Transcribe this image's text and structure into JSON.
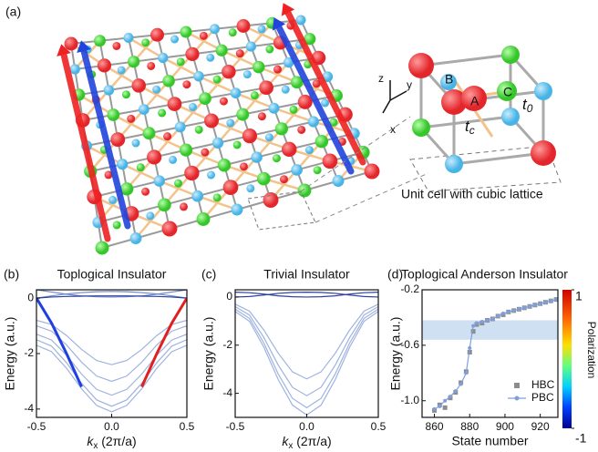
{
  "panel_a": {
    "label": "(a)",
    "caption": "Unit cell with cubic lattice",
    "sites": [
      "A",
      "B",
      "C"
    ],
    "hopping_0": {
      "base": "t",
      "sub": "0"
    },
    "hopping_c": {
      "base": "t",
      "sub": "c"
    },
    "axes": [
      "z",
      "y",
      "x"
    ]
  },
  "chart_data": [
    {
      "type": "line",
      "panel": "(b)",
      "title": "Toplogical Insulator",
      "ylabel": "Energy (a.u.)",
      "xlabel": {
        "base": "k",
        "sub": "x",
        "rest": " (2π/a)"
      },
      "x": [
        -0.5,
        -0.4,
        -0.3,
        -0.2,
        -0.1,
        0,
        0.1,
        0.2,
        0.3,
        0.4,
        0.5
      ],
      "xlim": [
        -0.5,
        0.5
      ],
      "ylim": [
        -4.3,
        0.3
      ],
      "xticks": [
        -0.5,
        {
          "value": 0,
          "label": "0.0"
        },
        0.5
      ],
      "yticks": [
        0,
        -2,
        -4
      ],
      "series": [
        {
          "color": "#9fb3e0",
          "values": [
            -1.7,
            -1.93,
            -2.53,
            -3.27,
            -3.87,
            -4.1,
            -3.87,
            -3.27,
            -2.53,
            -1.93,
            -1.7
          ]
        },
        {
          "color": "#9fb3e0",
          "values": [
            -1.5,
            -1.73,
            -2.33,
            -3.07,
            -3.67,
            -3.9,
            -3.67,
            -3.07,
            -2.33,
            -1.73,
            -1.5
          ]
        },
        {
          "color": "#9fb3e0",
          "values": [
            -1.3,
            -1.51,
            -2.06,
            -2.74,
            -3.29,
            -3.5,
            -3.29,
            -2.74,
            -2.06,
            -1.51,
            -1.3
          ]
        },
        {
          "color": "#9fb3e0",
          "values": [
            -1.0,
            -1.19,
            -1.69,
            -2.31,
            -2.81,
            -3.0,
            -2.81,
            -2.31,
            -1.69,
            -1.19,
            -1.0
          ]
        },
        {
          "color": "#9fb3e0",
          "values": [
            -0.8,
            -0.95,
            -1.35,
            -1.85,
            -2.25,
            -2.4,
            -2.25,
            -1.85,
            -1.35,
            -0.95,
            -0.8
          ]
        },
        {
          "color": "#6f86c8",
          "values": [
            0,
            0.08,
            0.15,
            0.2,
            0.23,
            0.24,
            0.23,
            0.2,
            0.15,
            0.08,
            0
          ]
        },
        {
          "color": "#6f86c8",
          "values": [
            0.3,
            0.22,
            0.14,
            0.08,
            0.05,
            0.04,
            0.05,
            0.08,
            0.14,
            0.22,
            0.3
          ]
        },
        {
          "color": "#2a3f9f",
          "values": [
            0,
            0.04,
            0.06,
            0.07,
            0.08,
            0.08,
            0.08,
            0.07,
            0.06,
            0.04,
            0
          ]
        },
        {
          "color": "#1f3fdf",
          "width": 3,
          "values": [
            0,
            -0.9,
            -2.0,
            -3.2,
            null,
            null,
            null,
            null,
            null,
            null,
            0.3
          ]
        },
        {
          "color": "#e02020",
          "width": 3,
          "values": [
            0.3,
            null,
            null,
            null,
            null,
            null,
            null,
            -3.2,
            -2.0,
            -0.9,
            0
          ]
        }
      ]
    },
    {
      "type": "line",
      "panel": "(c)",
      "title": "Trivial Insulator",
      "ylabel": "Energy (a.u.)",
      "xlabel": {
        "base": "k",
        "sub": "x",
        "rest": " (2π/a)"
      },
      "x": [
        -0.5,
        -0.4,
        -0.3,
        -0.2,
        -0.1,
        0,
        0.1,
        0.2,
        0.3,
        0.4,
        0.5
      ],
      "xlim": [
        -0.5,
        0.5
      ],
      "ylim": [
        -5.0,
        0.3
      ],
      "xticks": [
        -0.5,
        {
          "value": 0,
          "label": "0.0"
        },
        0.5
      ],
      "yticks": [
        0,
        -2,
        -4
      ],
      "series": [
        {
          "color": "#9fb3e0",
          "values": [
            -0.6,
            -1.01,
            -2.08,
            -3.42,
            -4.49,
            -4.9,
            -4.49,
            -3.42,
            -2.08,
            -1.01,
            -0.6
          ]
        },
        {
          "color": "#9fb3e0",
          "values": [
            -0.5,
            -0.89,
            -1.91,
            -3.19,
            -4.21,
            -4.6,
            -4.21,
            -3.19,
            -1.91,
            -0.89,
            -0.5
          ]
        },
        {
          "color": "#9fb3e0",
          "values": [
            -0.4,
            -0.75,
            -1.68,
            -2.82,
            -3.75,
            -4.1,
            -3.75,
            -2.82,
            -1.68,
            -0.75,
            -0.4
          ]
        },
        {
          "color": "#9fb3e0",
          "values": [
            -0.3,
            -0.59,
            -1.37,
            -2.33,
            -3.11,
            -3.4,
            -3.11,
            -2.33,
            -1.37,
            -0.59,
            -0.3
          ]
        },
        {
          "color": "#2a3f9f",
          "values": [
            0.2,
            0.18,
            0.12,
            0.05,
            0.01,
            0,
            0.01,
            0.05,
            0.12,
            0.18,
            0.2
          ]
        },
        {
          "color": "#2a3f9f",
          "values": [
            0,
            0.02,
            0.08,
            0.15,
            0.19,
            0.2,
            0.19,
            0.15,
            0.08,
            0.02,
            0
          ]
        }
      ]
    },
    {
      "type": "scatter",
      "panel": "(d)",
      "title": "Toplogical Anderson Insulator",
      "ylabel": "Energy (a.u.)",
      "xlabel": "State number",
      "legend": "lower right",
      "x": [
        860,
        863,
        866,
        869,
        872,
        875,
        878,
        880,
        882,
        884,
        887,
        890,
        893,
        896,
        899,
        902,
        905,
        908,
        911,
        914,
        917,
        920,
        923,
        926,
        929
      ],
      "xlim": [
        853,
        930
      ],
      "ylim": [
        -1.12,
        -0.2
      ],
      "xticks": [
        860,
        880,
        900,
        920
      ],
      "yticks": [
        -0.2,
        -0.6,
        {
          "value": -1.0,
          "label": "-1.0"
        }
      ],
      "shade": [
        -0.56,
        -0.42
      ],
      "shade_color": "#cfe0f3",
      "series": [
        {
          "name": "HBC",
          "color": "#8c8c8c",
          "marker": "square",
          "values": [
            -1.07,
            -1.03,
            -1.05,
            -0.98,
            -0.94,
            -0.87,
            -0.79,
            -0.65,
            -0.5,
            -0.45,
            -0.44,
            -0.42,
            -0.41,
            -0.39,
            -0.38,
            -0.36,
            -0.35,
            -0.34,
            -0.33,
            -0.32,
            -0.31,
            -0.3,
            -0.29,
            -0.28,
            -0.27
          ]
        },
        {
          "name": "PBC",
          "color": "#7f9fdc",
          "marker": "line",
          "values": [
            -1.06,
            -1.04,
            -1.0,
            -0.97,
            -0.93,
            -0.88,
            -0.8,
            -0.62,
            -0.46,
            -0.44,
            -0.43,
            -0.42,
            -0.41,
            -0.39,
            -0.37,
            -0.36,
            -0.35,
            -0.34,
            -0.33,
            -0.32,
            -0.31,
            -0.3,
            -0.29,
            -0.28,
            -0.27
          ]
        }
      ],
      "colorbar": {
        "label": "Polarization",
        "clim": [
          -1,
          1
        ],
        "ticks": [
          1,
          -1
        ]
      }
    }
  ]
}
